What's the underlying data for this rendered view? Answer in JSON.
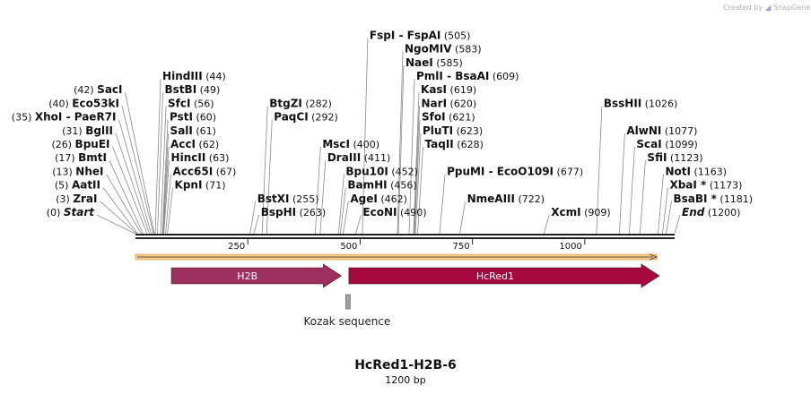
{
  "credit": {
    "text": "Created by",
    "brand": "SnapGene",
    "brand_icon": "snapgene-logo-icon"
  },
  "map": {
    "title": "HcRed1-H2B-6",
    "length_label": "1200 bp",
    "length": 1200,
    "ticks": [
      250,
      500,
      750,
      1000
    ],
    "tick_labels": [
      "250",
      "500",
      "750",
      "1000"
    ]
  },
  "features": [
    {
      "name": "H2B",
      "start": 80,
      "end": 458,
      "color": "#9b305f"
    },
    {
      "name": "HcRed1",
      "start": 475,
      "end": 1166,
      "color": "#a50a3c"
    }
  ],
  "misc_features": [
    {
      "name": "Kozak sequence",
      "start": 466,
      "end": 476,
      "color": "#a0a0a0"
    }
  ],
  "sites": [
    {
      "name": "Start",
      "pos_label": "(0)",
      "pos": 0,
      "italic": true,
      "side": "left",
      "row": 0
    },
    {
      "name": "ZraI",
      "pos_label": "(3)",
      "pos": 3,
      "side": "left",
      "row": 1
    },
    {
      "name": "AatII",
      "pos_label": "(5)",
      "pos": 5,
      "side": "left",
      "row": 2
    },
    {
      "name": "NheI",
      "pos_label": "(13)",
      "pos": 13,
      "side": "left",
      "row": 3
    },
    {
      "name": "BmtI",
      "pos_label": "(17)",
      "pos": 17,
      "side": "left",
      "row": 4
    },
    {
      "name": "BpuEI",
      "pos_label": "(26)",
      "pos": 26,
      "side": "left",
      "row": 5
    },
    {
      "name": "BglII",
      "pos_label": "(31)",
      "pos": 31,
      "side": "left",
      "row": 6
    },
    {
      "name": "XhoI",
      "name2": "PaeR7I",
      "pos_label": "(35)",
      "pos": 35,
      "side": "left",
      "row": 7
    },
    {
      "name": "Eco53kI",
      "pos_label": "(40)",
      "pos": 40,
      "side": "left",
      "row": 8
    },
    {
      "name": "SacI",
      "pos_label": "(42)",
      "pos": 42,
      "side": "left",
      "row": 9
    },
    {
      "name": "HindIII",
      "pos_label": "(44)",
      "pos": 44,
      "side": "right",
      "row": 10
    },
    {
      "name": "BstBI",
      "pos_label": "(49)",
      "pos": 49,
      "side": "right",
      "row": 9
    },
    {
      "name": "SfcI",
      "pos_label": "(56)",
      "pos": 56,
      "side": "right",
      "row": 8
    },
    {
      "name": "PstI",
      "pos_label": "(60)",
      "pos": 60,
      "side": "right",
      "row": 7
    },
    {
      "name": "SalI",
      "pos_label": "(61)",
      "pos": 61,
      "side": "right",
      "row": 6
    },
    {
      "name": "AccI",
      "pos_label": "(62)",
      "pos": 62,
      "side": "right",
      "row": 5
    },
    {
      "name": "HincII",
      "pos_label": "(63)",
      "pos": 63,
      "side": "right",
      "row": 4
    },
    {
      "name": "Acc65I",
      "pos_label": "(67)",
      "pos": 67,
      "side": "right",
      "row": 3
    },
    {
      "name": "KpnI",
      "pos_label": "(71)",
      "pos": 71,
      "side": "right",
      "row": 2
    },
    {
      "name": "BtgZI",
      "pos_label": "(282)",
      "pos": 282,
      "side": "right",
      "row": 8
    },
    {
      "name": "PaqCI",
      "pos_label": "(292)",
      "pos": 292,
      "side": "right",
      "row": 7
    },
    {
      "name": "BstXI",
      "pos_label": "(255)",
      "pos": 255,
      "side": "right",
      "row": 1
    },
    {
      "name": "BspHI",
      "pos_label": "(263)",
      "pos": 263,
      "side": "right",
      "row": 0
    },
    {
      "name": "MscI",
      "pos_label": "(400)",
      "pos": 400,
      "side": "right",
      "row": 5
    },
    {
      "name": "DraIII",
      "pos_label": "(411)",
      "pos": 411,
      "side": "right",
      "row": 4
    },
    {
      "name": "FspI",
      "name2": "FspAI",
      "pos_label": "(505)",
      "pos": 505,
      "side": "right",
      "row": 13
    },
    {
      "name": "NgoMIV",
      "pos_label": "(583)",
      "pos": 583,
      "side": "right",
      "row": 12
    },
    {
      "name": "NaeI",
      "pos_label": "(585)",
      "pos": 585,
      "side": "right",
      "row": 11
    },
    {
      "name": "PmlI",
      "name2": "BsaAI",
      "pos_label": "(609)",
      "pos": 609,
      "side": "right",
      "row": 10
    },
    {
      "name": "KasI",
      "pos_label": "(619)",
      "pos": 619,
      "side": "right",
      "row": 9
    },
    {
      "name": "NarI",
      "pos_label": "(620)",
      "pos": 620,
      "side": "right",
      "row": 8
    },
    {
      "name": "SfoI",
      "pos_label": "(621)",
      "pos": 621,
      "side": "right",
      "row": 7
    },
    {
      "name": "PluTI",
      "pos_label": "(623)",
      "pos": 623,
      "side": "right",
      "row": 6
    },
    {
      "name": "TaqII",
      "pos_label": "(628)",
      "pos": 628,
      "side": "right",
      "row": 5
    },
    {
      "name": "Bpu10I",
      "pos_label": "(452)",
      "pos": 452,
      "side": "right",
      "row": 3
    },
    {
      "name": "BamHI",
      "pos_label": "(456)",
      "pos": 456,
      "side": "right",
      "row": 2
    },
    {
      "name": "AgeI",
      "pos_label": "(462)",
      "pos": 462,
      "side": "right",
      "row": 1
    },
    {
      "name": "EcoNI",
      "pos_label": "(490)",
      "pos": 490,
      "side": "right",
      "row": 0
    },
    {
      "name": "PpuMI",
      "name2": "EcoO109I",
      "pos_label": "(677)",
      "pos": 677,
      "side": "right",
      "row": 3
    },
    {
      "name": "NmeAIII",
      "pos_label": "(722)",
      "pos": 722,
      "side": "right",
      "row": 1
    },
    {
      "name": "XcmI",
      "pos_label": "(909)",
      "pos": 909,
      "side": "right",
      "row": 0
    },
    {
      "name": "BssHII",
      "pos_label": "(1026)",
      "pos": 1026,
      "side": "right",
      "row": 8
    },
    {
      "name": "AlwNI",
      "pos_label": "(1077)",
      "pos": 1077,
      "side": "right",
      "row": 6
    },
    {
      "name": "ScaI",
      "pos_label": "(1099)",
      "pos": 1099,
      "side": "right",
      "row": 5
    },
    {
      "name": "SfiI",
      "pos_label": "(1123)",
      "pos": 1123,
      "side": "right",
      "row": 4
    },
    {
      "name": "NotI",
      "pos_label": "(1163)",
      "pos": 1163,
      "side": "right",
      "row": 3
    },
    {
      "name": "XbaI *",
      "pos_label": "(1173)",
      "pos": 1173,
      "side": "right",
      "row": 2
    },
    {
      "name": "BsaBI *",
      "pos_label": "(1181)",
      "pos": 1181,
      "side": "right",
      "row": 1
    },
    {
      "name": "End",
      "pos_label": "(1200)",
      "pos": 1200,
      "italic": true,
      "side": "right",
      "row": 0
    }
  ]
}
